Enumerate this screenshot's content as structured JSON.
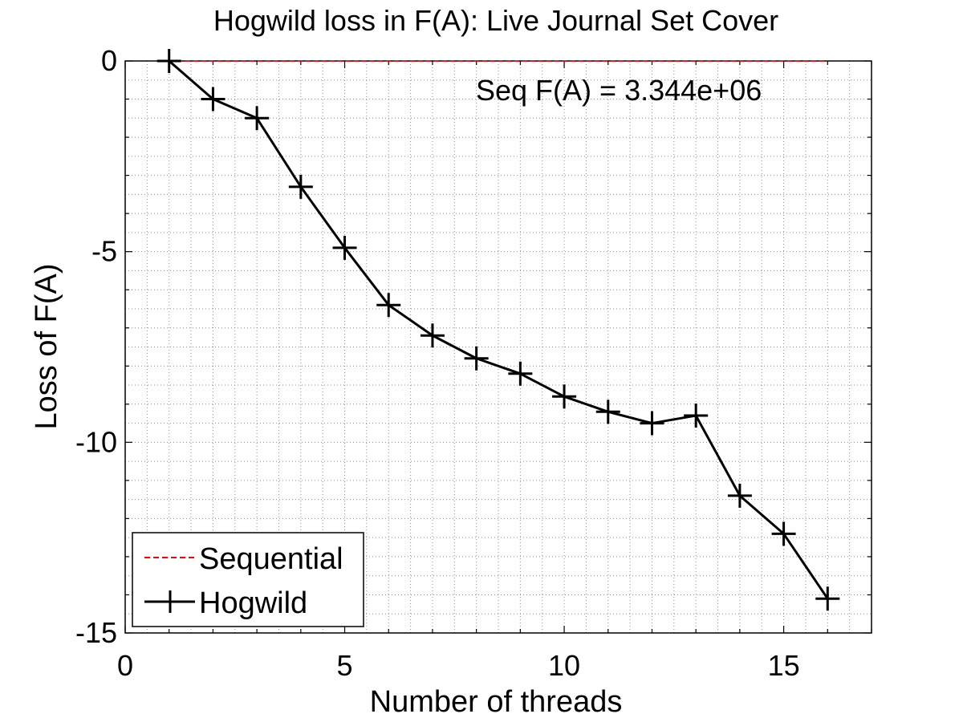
{
  "chart_data": {
    "type": "line",
    "title": "Hogwild loss in F(A): Live Journal Set Cover",
    "xlabel": "Number of threads",
    "ylabel": "Loss of F(A)",
    "xlim": [
      0,
      17
    ],
    "ylim": [
      -15,
      0
    ],
    "xticks": [
      0,
      5,
      10,
      15
    ],
    "yticks": [
      0,
      -5,
      -10,
      -15
    ],
    "grid": "major and minor, dotted",
    "legend_position": "bottom-left",
    "annotation": "Seq F(A) = 3.344e+06",
    "series": [
      {
        "name": "Sequential",
        "style": "dashed",
        "color": "#ff0000",
        "x": [
          1,
          16
        ],
        "y": [
          0,
          0
        ]
      },
      {
        "name": "Hogwild",
        "style": "solid-plus-markers",
        "color": "#000000",
        "x": [
          1,
          2,
          3,
          4,
          5,
          6,
          7,
          8,
          9,
          10,
          11,
          12,
          13,
          14,
          15,
          16
        ],
        "y": [
          0,
          -1.0,
          -1.5,
          -3.3,
          -4.9,
          -6.4,
          -7.2,
          -7.8,
          -8.2,
          -8.8,
          -9.2,
          -9.5,
          -9.3,
          -11.4,
          -12.4,
          -14.1
        ]
      }
    ]
  }
}
